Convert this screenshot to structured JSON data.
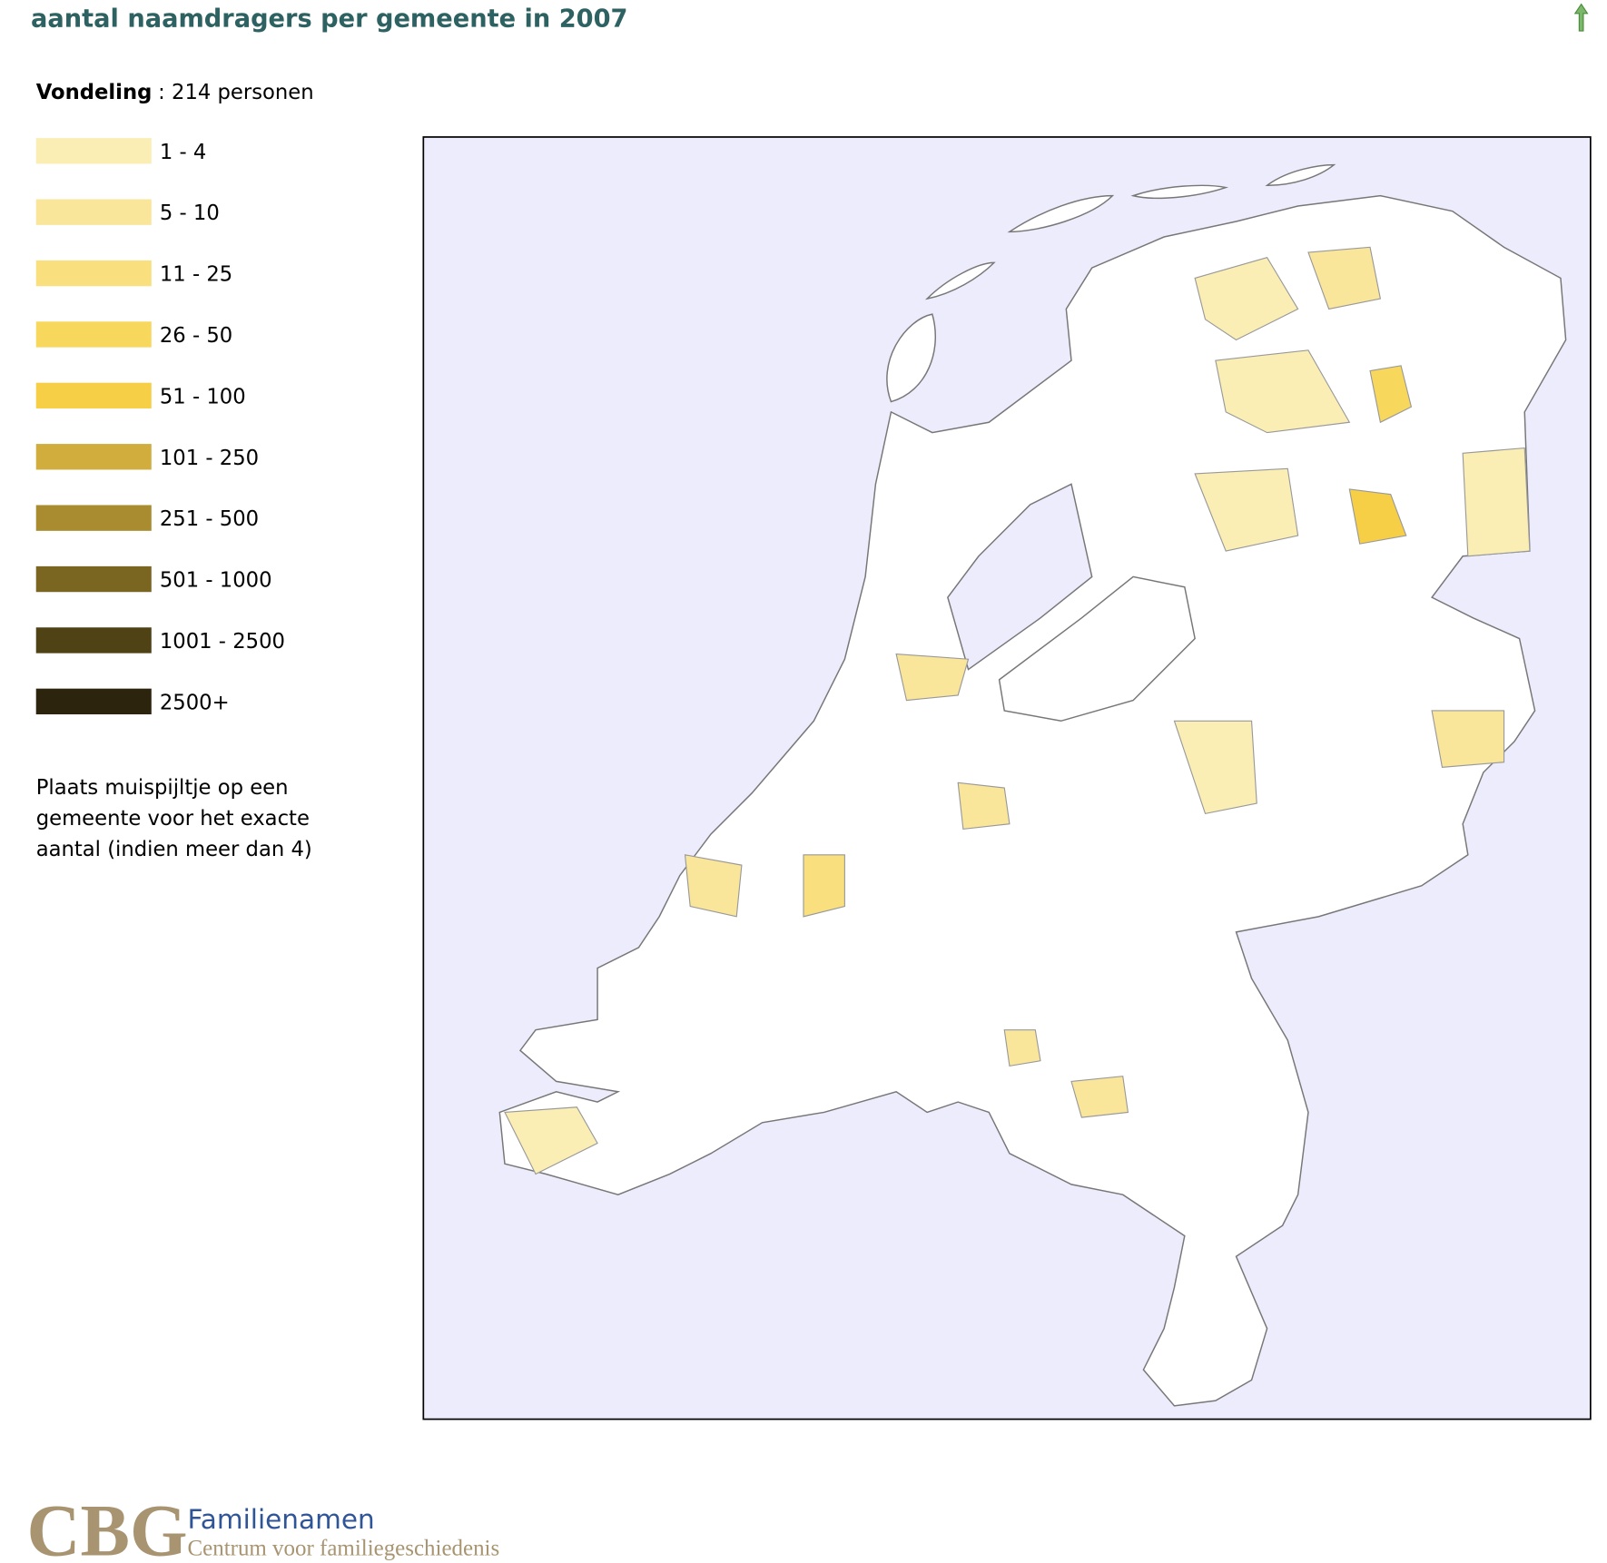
{
  "header": {
    "title": "aantal naamdragers per gemeente in 2007"
  },
  "summary": {
    "name": "Vondeling",
    "count_text": ": 214 personen"
  },
  "legend": [
    {
      "label": "1 - 4",
      "color": "#faeeb5"
    },
    {
      "label": "5 - 10",
      "color": "#fae69b"
    },
    {
      "label": "11 - 25",
      "color": "#f9df7e"
    },
    {
      "label": "26 - 50",
      "color": "#f8d75d"
    },
    {
      "label": "51 - 100",
      "color": "#f6cf47"
    },
    {
      "label": "101 - 250",
      "color": "#d1ad3e"
    },
    {
      "label": "251 - 500",
      "color": "#a88c2f"
    },
    {
      "label": "501 - 1000",
      "color": "#7a6521"
    },
    {
      "label": "1001 - 2500",
      "color": "#4f4214"
    },
    {
      "label": "2500+",
      "color": "#2c240c"
    }
  ],
  "instruction": [
    "Plaats muispijltje op een",
    "gemeente voor het exacte",
    "aantal (indien meer dan 4)"
  ],
  "footer": {
    "logo": "CBG",
    "brand": "Familienamen",
    "tagline": "Centrum voor familiegeschiedenis"
  }
}
